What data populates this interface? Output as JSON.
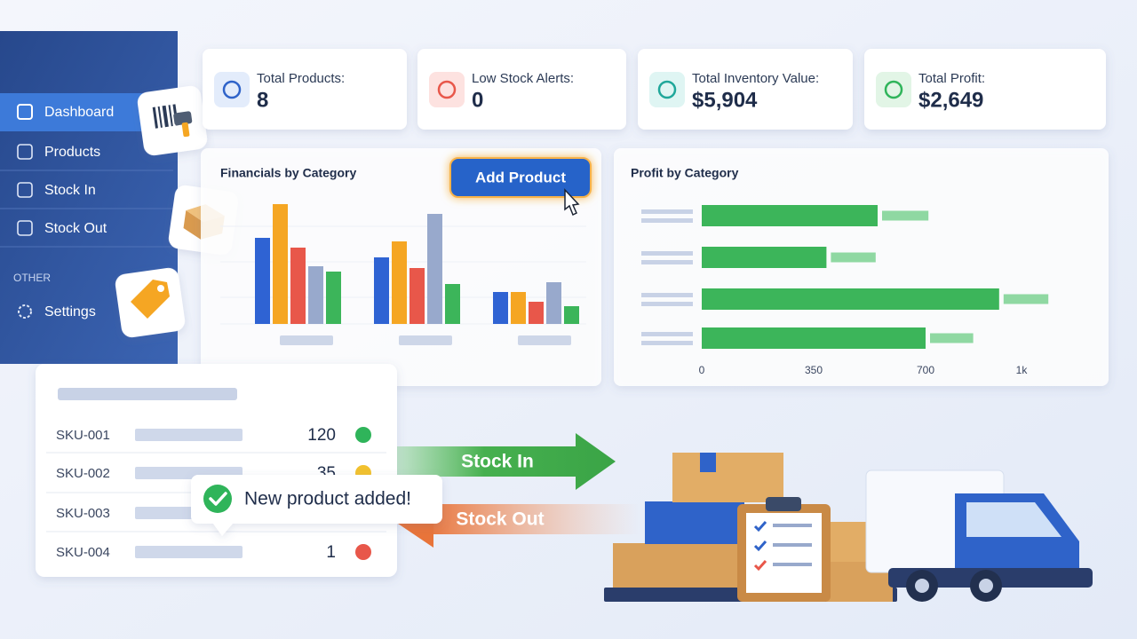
{
  "sidebar": {
    "items": [
      "Dashboard",
      "Products",
      "Stock In",
      "Stock Out"
    ],
    "section": "OTHER",
    "settings": "Settings"
  },
  "kpis": [
    {
      "label": "Total Products:",
      "value": "8"
    },
    {
      "label": "Low Stock Alerts:",
      "value": "0"
    },
    {
      "label": "Total Inventory Value:",
      "value": "$5,904"
    },
    {
      "label": "Total Profit:",
      "value": "$2,649"
    }
  ],
  "chart_data": [
    {
      "type": "bar",
      "title": "Financials by Category",
      "categories": [
        null,
        null,
        null
      ],
      "series": [
        {
          "color": "#2f63d3",
          "values": [
            97,
            75,
            36
          ]
        },
        {
          "color": "#f5a623",
          "values": [
            135,
            93,
            36
          ]
        },
        {
          "color": "#e8574a",
          "values": [
            86,
            63,
            25
          ]
        },
        {
          "color": "#98a9cc",
          "values": [
            65,
            124,
            47
          ]
        },
        {
          "color": "#3cb55a",
          "values": [
            59,
            45,
            20
          ]
        }
      ],
      "ylim": [
        0,
        150
      ]
    },
    {
      "type": "hbar",
      "title": "Profit by Category",
      "categories": [
        null,
        null,
        null,
        null
      ],
      "series": [
        {
          "color": "#3cb55a",
          "values": [
            550,
            390,
            930,
            700
          ]
        },
        {
          "color": "#8fd8a2",
          "values": [
            145,
            140,
            140,
            135
          ]
        }
      ],
      "xlim": [
        0,
        1100
      ],
      "xticks": [
        0,
        350,
        700,
        {
          "value": 1000,
          "label": "1k"
        }
      ]
    }
  ],
  "button": "Add Product",
  "table": {
    "rows": [
      {
        "sku": "SKU-001",
        "qty": 120,
        "status": "#2fb45a"
      },
      {
        "sku": "SKU-002",
        "qty": 35,
        "status": "#f2c12e"
      },
      {
        "sku": "SKU-003"
      },
      {
        "sku": "SKU-004",
        "qty": 1,
        "status": "#e8574a"
      }
    ]
  },
  "toast": "New product added!",
  "flow": {
    "in": "Stock In",
    "out": "Stock Out"
  }
}
